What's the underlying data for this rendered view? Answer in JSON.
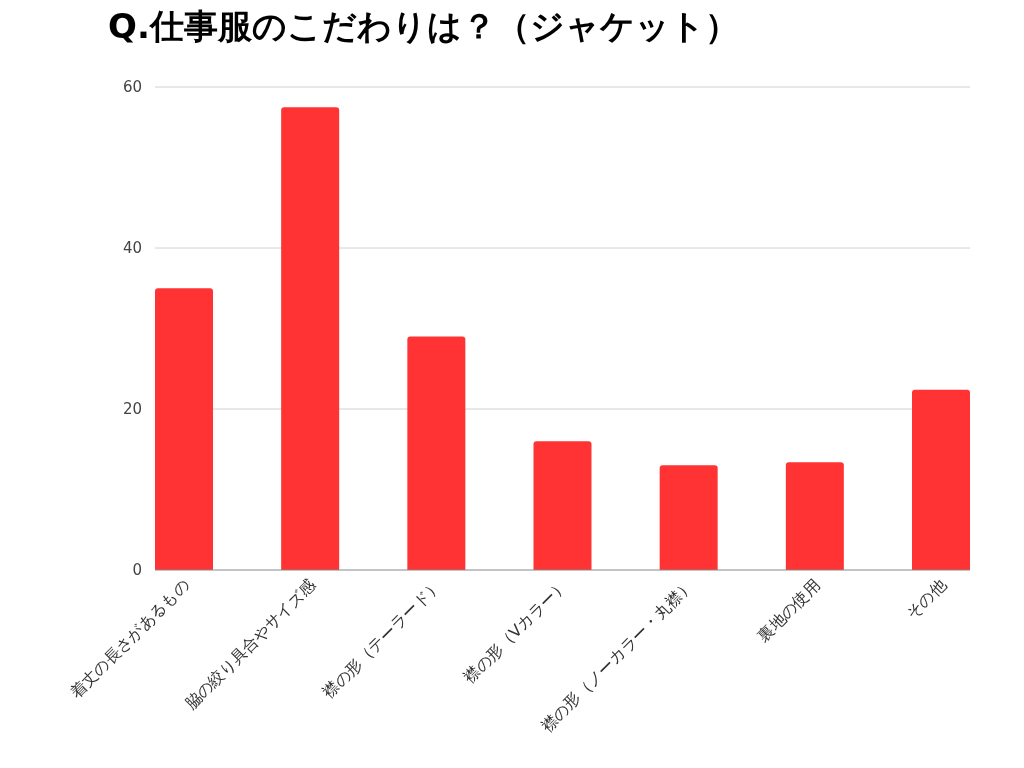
{
  "chart_data": {
    "type": "bar",
    "title": "Q.仕事服のこだわりは？（ジャケット）",
    "categories": [
      "着丈の長さがあるもの",
      "脇の絞り具合やサイズ感",
      "襟の形（テーラード）",
      "襟の形（Vカラー）",
      "襟の形（ノーカラー・丸襟）",
      "裏地の使用",
      "その他"
    ],
    "values": [
      35,
      57.5,
      29,
      16,
      13,
      13.4,
      22.4
    ],
    "color": "#ff3333",
    "ylim": [
      0,
      60
    ],
    "yticks": [
      0,
      20,
      40,
      60
    ],
    "grid": "y"
  }
}
